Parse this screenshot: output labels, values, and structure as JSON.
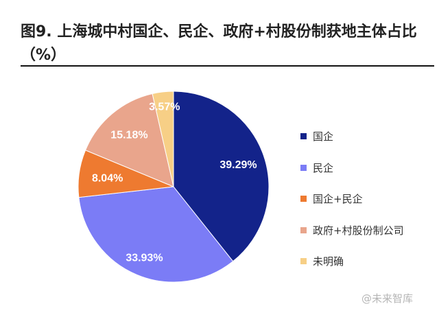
{
  "title": "图9. 上海城中村国企、民企、政府+村股份制获地主体占比（%）",
  "watermark": "@未来智库",
  "chart_data": {
    "type": "pie",
    "title": "图9. 上海城中村国企、民企、政府+村股份制获地主体占比（%）",
    "categories": [
      "国企",
      "民企",
      "国企+民企",
      "政府+村股份制公司",
      "未明确"
    ],
    "values": [
      39.29,
      33.93,
      8.04,
      15.18,
      3.57
    ],
    "labels": [
      "39.29%",
      "33.93%",
      "8.04%",
      "15.18%",
      "3.57%"
    ],
    "colors": [
      "#13238a",
      "#7b7cf6",
      "#ee7a30",
      "#e9a58c",
      "#f7cf86"
    ],
    "legend": "right",
    "start": "top",
    "direction": "clockwise"
  }
}
